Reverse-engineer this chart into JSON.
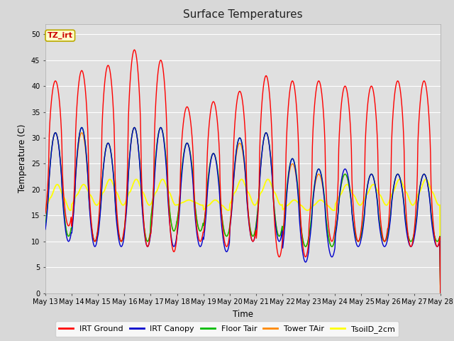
{
  "title": "Surface Temperatures",
  "xlabel": "Time",
  "ylabel": "Temperature (C)",
  "ylim": [
    0,
    52
  ],
  "yticks": [
    0,
    5,
    10,
    15,
    20,
    25,
    30,
    35,
    40,
    45,
    50
  ],
  "fig_bg_color": "#d8d8d8",
  "plot_bg_color": "#e0e0e0",
  "annotation_text": "TZ_irt",
  "annotation_bg": "#ffffcc",
  "annotation_border": "#bbaa00",
  "annotation_text_color": "#cc0000",
  "series_colors": {
    "IRT Ground": "#ff0000",
    "IRT Canopy": "#0000cc",
    "Floor Tair": "#00bb00",
    "Tower TAir": "#ff8800",
    "TsoilD_2cm": "#ffff00"
  },
  "n_days": 15,
  "x_tick_labels": [
    "May 13",
    "May 14",
    "May 15",
    "May 16",
    "May 17",
    "May 18",
    "May 19",
    "May 20",
    "May 21",
    "May 22",
    "May 23",
    "May 24",
    "May 25",
    "May 26",
    "May 27",
    "May 28"
  ],
  "irt_ground_peaks": [
    41,
    43,
    44,
    47,
    45,
    36,
    37,
    39,
    42,
    41,
    41,
    40,
    40,
    41,
    41
  ],
  "irt_ground_troughs": [
    13,
    10,
    10,
    9,
    8,
    10,
    9,
    10,
    7,
    7,
    10,
    10,
    10,
    9,
    9
  ],
  "irt_canopy_peaks": [
    31,
    32,
    29,
    32,
    32,
    29,
    27,
    30,
    31,
    26,
    24,
    24,
    23,
    23,
    23
  ],
  "irt_canopy_troughs": [
    10,
    9,
    9,
    9,
    9,
    9,
    8,
    10,
    10,
    6,
    7,
    9,
    9,
    9,
    9
  ],
  "floor_peaks": [
    31,
    32,
    29,
    32,
    32,
    29,
    27,
    30,
    31,
    26,
    24,
    23,
    23,
    23,
    23
  ],
  "floor_troughs": [
    11,
    10,
    10,
    10,
    12,
    12,
    11,
    11,
    11,
    9,
    9,
    10,
    10,
    10,
    10
  ],
  "tower_peaks": [
    31,
    31,
    29,
    32,
    32,
    29,
    27,
    29,
    31,
    25,
    23,
    23,
    23,
    23,
    23
  ],
  "tower_troughs": [
    11,
    10,
    10,
    10,
    12,
    12,
    11,
    11,
    11,
    9,
    9,
    10,
    10,
    10,
    10
  ],
  "soil_peaks": [
    21,
    21,
    22,
    22,
    22,
    18,
    18,
    22,
    22,
    18,
    18,
    21,
    21,
    22,
    22
  ],
  "soil_troughs": [
    16,
    17,
    17,
    17,
    17,
    17,
    16,
    17,
    17,
    16,
    16,
    17,
    17,
    17,
    17
  ],
  "peak_phase": 0.38,
  "soil_peak_phase": 0.45
}
